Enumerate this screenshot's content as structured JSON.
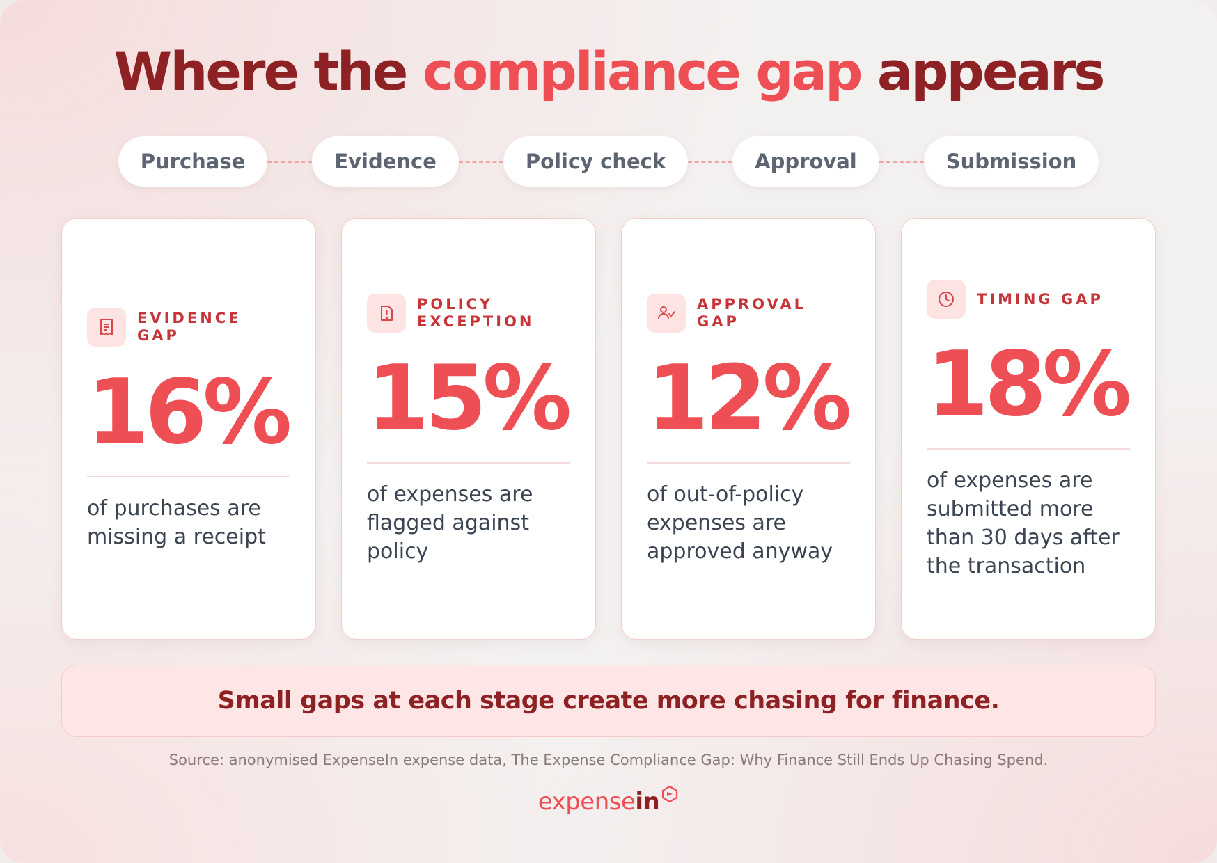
{
  "title": {
    "part1": "Where the ",
    "highlight": "compliance gap",
    "part2": " appears"
  },
  "stages": [
    "Purchase",
    "Evidence",
    "Policy check",
    "Approval",
    "Submission"
  ],
  "cards": [
    {
      "tag": "EVIDENCE GAP",
      "value": "16%",
      "description": "of purchases are missing a receipt",
      "icon": "receipt-icon"
    },
    {
      "tag": "POLICY EXCEPTION",
      "value": "15%",
      "description": "of expenses are flagged against policy",
      "icon": "alert-icon"
    },
    {
      "tag": "APPROVAL GAP",
      "value": "12%",
      "description": "of out-of-policy expenses are approved anyway",
      "icon": "user-check-icon"
    },
    {
      "tag": "TIMING GAP",
      "value": "18%",
      "description": "of expenses are submitted more than 30 days after the transaction",
      "icon": "clock-icon"
    }
  ],
  "banner": "Small gaps at each stage create more chasing for finance.",
  "source": "Source: anonymised ExpenseIn expense data, The Expense Compliance Gap: Why Finance Still Ends Up Chasing Spend.",
  "logo": {
    "part1": "expense",
    "part2": "in"
  },
  "colors": {
    "dark_red": "#8e2124",
    "accent": "#ee4f55",
    "text": "#3b4452",
    "pill_text": "#5d6573"
  }
}
